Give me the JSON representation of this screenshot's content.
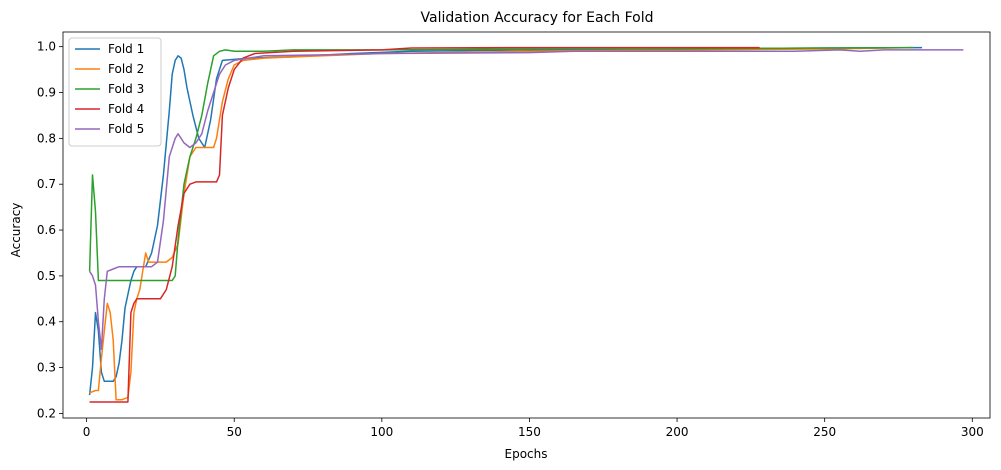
{
  "chart_data": {
    "type": "line",
    "title": "Validation Accuracy for Each Fold",
    "xlabel": "Epochs",
    "ylabel": "Accuracy",
    "xlim": [
      -8,
      306
    ],
    "ylim": [
      0.19,
      1.032
    ],
    "xticks": [
      0,
      50,
      100,
      150,
      200,
      250,
      300
    ],
    "yticks": [
      0.2,
      0.3,
      0.4,
      0.5,
      0.6,
      0.7,
      0.8,
      0.9,
      1.0
    ],
    "grid": false,
    "legend_position": "upper-left",
    "series": [
      {
        "name": "Fold 1",
        "color": "#1f77b4",
        "points": [
          [
            1,
            0.24
          ],
          [
            2,
            0.3
          ],
          [
            3,
            0.42
          ],
          [
            4,
            0.38
          ],
          [
            5,
            0.29
          ],
          [
            6,
            0.27
          ],
          [
            7,
            0.27
          ],
          [
            9,
            0.27
          ],
          [
            10,
            0.28
          ],
          [
            11,
            0.31
          ],
          [
            12,
            0.36
          ],
          [
            13,
            0.43
          ],
          [
            15,
            0.49
          ],
          [
            16,
            0.51
          ],
          [
            17,
            0.52
          ],
          [
            20,
            0.52
          ],
          [
            22,
            0.55
          ],
          [
            24,
            0.61
          ],
          [
            26,
            0.72
          ],
          [
            28,
            0.86
          ],
          [
            29,
            0.94
          ],
          [
            30,
            0.97
          ],
          [
            31,
            0.98
          ],
          [
            32,
            0.975
          ],
          [
            33,
            0.95
          ],
          [
            34,
            0.91
          ],
          [
            36,
            0.85
          ],
          [
            38,
            0.8
          ],
          [
            40,
            0.78
          ],
          [
            42,
            0.84
          ],
          [
            44,
            0.93
          ],
          [
            46,
            0.97
          ],
          [
            55,
            0.975
          ],
          [
            70,
            0.978
          ],
          [
            90,
            0.985
          ],
          [
            110,
            0.99
          ],
          [
            150,
            0.993
          ],
          [
            200,
            0.995
          ],
          [
            250,
            0.997
          ],
          [
            283,
            0.998
          ]
        ]
      },
      {
        "name": "Fold 2",
        "color": "#ff7f0e",
        "points": [
          [
            1,
            0.245
          ],
          [
            3,
            0.25
          ],
          [
            4,
            0.25
          ],
          [
            5,
            0.32
          ],
          [
            6,
            0.38
          ],
          [
            7,
            0.44
          ],
          [
            8,
            0.42
          ],
          [
            9,
            0.36
          ],
          [
            10,
            0.23
          ],
          [
            12,
            0.23
          ],
          [
            14,
            0.235
          ],
          [
            15,
            0.29
          ],
          [
            16,
            0.42
          ],
          [
            17,
            0.45
          ],
          [
            18,
            0.47
          ],
          [
            19,
            0.51
          ],
          [
            20,
            0.55
          ],
          [
            21,
            0.53
          ],
          [
            27,
            0.53
          ],
          [
            29,
            0.54
          ],
          [
            31,
            0.57
          ],
          [
            33,
            0.68
          ],
          [
            35,
            0.76
          ],
          [
            37,
            0.78
          ],
          [
            43,
            0.78
          ],
          [
            44,
            0.8
          ],
          [
            46,
            0.88
          ],
          [
            48,
            0.93
          ],
          [
            50,
            0.96
          ],
          [
            53,
            0.97
          ],
          [
            60,
            0.975
          ],
          [
            80,
            0.98
          ],
          [
            100,
            0.985
          ],
          [
            150,
            0.99
          ],
          [
            200,
            0.993
          ],
          [
            250,
            0.995
          ],
          [
            280,
            0.998
          ]
        ]
      },
      {
        "name": "Fold 3",
        "color": "#2ca02c",
        "points": [
          [
            1,
            0.51
          ],
          [
            2,
            0.72
          ],
          [
            3,
            0.64
          ],
          [
            4,
            0.49
          ],
          [
            5,
            0.49
          ],
          [
            10,
            0.49
          ],
          [
            20,
            0.49
          ],
          [
            29,
            0.49
          ],
          [
            30,
            0.5
          ],
          [
            31,
            0.58
          ],
          [
            33,
            0.7
          ],
          [
            35,
            0.76
          ],
          [
            37,
            0.8
          ],
          [
            39,
            0.85
          ],
          [
            41,
            0.92
          ],
          [
            43,
            0.98
          ],
          [
            45,
            0.99
          ],
          [
            47,
            0.993
          ],
          [
            50,
            0.99
          ],
          [
            60,
            0.99
          ],
          [
            70,
            0.993
          ],
          [
            100,
            0.993
          ],
          [
            150,
            0.995
          ],
          [
            200,
            0.995
          ],
          [
            250,
            0.997
          ],
          [
            280,
            0.998
          ]
        ]
      },
      {
        "name": "Fold 4",
        "color": "#d62728",
        "points": [
          [
            1,
            0.225
          ],
          [
            5,
            0.225
          ],
          [
            10,
            0.225
          ],
          [
            14,
            0.225
          ],
          [
            15,
            0.42
          ],
          [
            16,
            0.44
          ],
          [
            17,
            0.45
          ],
          [
            25,
            0.45
          ],
          [
            27,
            0.47
          ],
          [
            29,
            0.52
          ],
          [
            31,
            0.61
          ],
          [
            33,
            0.68
          ],
          [
            35,
            0.7
          ],
          [
            37,
            0.705
          ],
          [
            44,
            0.705
          ],
          [
            45,
            0.72
          ],
          [
            46,
            0.85
          ],
          [
            48,
            0.91
          ],
          [
            50,
            0.95
          ],
          [
            53,
            0.975
          ],
          [
            57,
            0.985
          ],
          [
            70,
            0.99
          ],
          [
            100,
            0.993
          ],
          [
            110,
            0.997
          ],
          [
            150,
            0.998
          ],
          [
            200,
            0.998
          ],
          [
            228,
            0.998
          ]
        ]
      },
      {
        "name": "Fold 5",
        "color": "#9467bd",
        "points": [
          [
            1,
            0.51
          ],
          [
            2,
            0.5
          ],
          [
            3,
            0.48
          ],
          [
            4,
            0.4
          ],
          [
            5,
            0.34
          ],
          [
            6,
            0.45
          ],
          [
            7,
            0.51
          ],
          [
            9,
            0.515
          ],
          [
            11,
            0.52
          ],
          [
            15,
            0.52
          ],
          [
            20,
            0.52
          ],
          [
            22,
            0.52
          ],
          [
            24,
            0.53
          ],
          [
            26,
            0.62
          ],
          [
            28,
            0.76
          ],
          [
            30,
            0.8
          ],
          [
            31,
            0.81
          ],
          [
            33,
            0.79
          ],
          [
            35,
            0.78
          ],
          [
            37,
            0.79
          ],
          [
            39,
            0.81
          ],
          [
            41,
            0.86
          ],
          [
            43,
            0.9
          ],
          [
            45,
            0.94
          ],
          [
            47,
            0.96
          ],
          [
            50,
            0.97
          ],
          [
            60,
            0.98
          ],
          [
            80,
            0.982
          ],
          [
            100,
            0.985
          ],
          [
            150,
            0.987
          ],
          [
            165,
            0.99
          ],
          [
            200,
            0.99
          ],
          [
            240,
            0.99
          ],
          [
            255,
            0.993
          ],
          [
            262,
            0.99
          ],
          [
            270,
            0.993
          ],
          [
            297,
            0.993
          ]
        ]
      }
    ]
  }
}
